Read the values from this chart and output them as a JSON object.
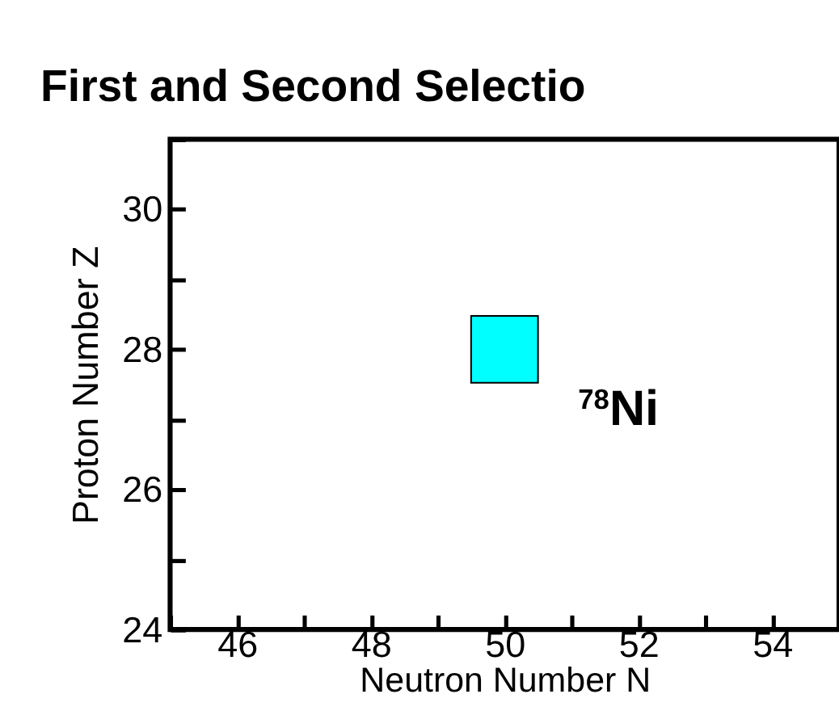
{
  "chart_data": {
    "type": "scatter",
    "title": "First and Second Selectio",
    "xlabel": "Neutron Number N",
    "ylabel": "Proton Number Z",
    "x": [
      50
    ],
    "values": [
      28
    ],
    "color": "#00ffff",
    "marker": "square",
    "xlim": [
      45,
      55
    ],
    "ylim": [
      24,
      31
    ],
    "xticks": [
      {
        "value": 45,
        "label": null
      },
      46,
      {
        "value": 47,
        "label": null
      },
      48,
      {
        "value": 49,
        "label": null
      },
      50,
      {
        "value": 51,
        "label": null
      },
      52,
      {
        "value": 53,
        "label": null
      },
      54,
      {
        "value": 55,
        "label": null
      }
    ],
    "yticks": [
      24,
      {
        "value": 25,
        "label": null
      },
      26,
      {
        "value": 27,
        "label": null
      },
      28,
      {
        "value": 29,
        "label": null
      },
      30,
      {
        "value": 31,
        "label": null
      }
    ],
    "grid": false,
    "annotations": [
      "$^{78}$Ni"
    ]
  }
}
